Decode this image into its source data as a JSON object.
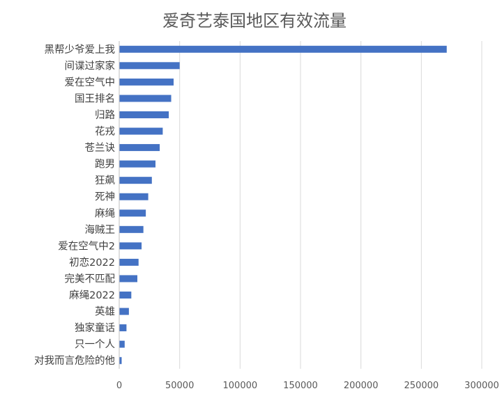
{
  "chart_data": {
    "type": "bar",
    "orientation": "horizontal",
    "title": "爱奇艺泰国地区有效流量",
    "categories": [
      "黑帮少爷爱上我",
      "间谍过家家",
      "爱在空气中",
      "国王排名",
      "归路",
      "花戎",
      "苍兰诀",
      "跑男",
      "狂飙",
      "死神",
      "麻绳",
      "海贼王",
      "爱在空气中2",
      "初恋2022",
      "完美不匹配",
      "麻绳2022",
      "英雄",
      "独家童话",
      "只一个人",
      "对我而言危险的他"
    ],
    "values": [
      271000,
      50000,
      45000,
      43000,
      41000,
      36000,
      33500,
      30000,
      27000,
      24000,
      22000,
      20000,
      18500,
      16000,
      15000,
      10000,
      8000,
      6000,
      4500,
      2000
    ],
    "xlim": [
      0,
      300000
    ],
    "xticks": [
      0,
      50000,
      100000,
      150000,
      200000,
      250000,
      300000
    ],
    "grid": true,
    "bar_color": "#4472c4",
    "legend": "none"
  }
}
